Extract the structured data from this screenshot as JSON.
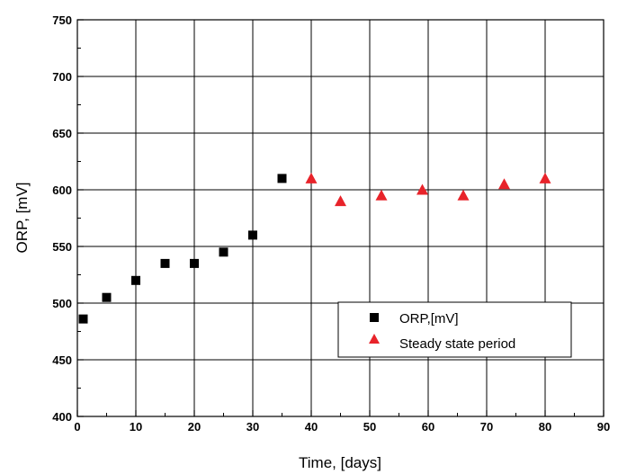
{
  "chart_data": {
    "type": "scatter",
    "title": "",
    "xlabel": "Time, [days]",
    "ylabel": "ORP, [mV]",
    "xlim": [
      0,
      90
    ],
    "ylim": [
      400,
      750
    ],
    "x_ticks": [
      0,
      10,
      20,
      30,
      40,
      50,
      60,
      70,
      80,
      90
    ],
    "y_ticks": [
      400,
      450,
      500,
      550,
      600,
      650,
      700,
      750
    ],
    "x_tick_labels": [
      "0",
      "10",
      "20",
      "30",
      "40",
      "50",
      "60",
      "70",
      "80",
      "90"
    ],
    "y_tick_labels": [
      "400",
      "450",
      "500",
      "550",
      "600",
      "650",
      "700",
      "750"
    ],
    "grid": true,
    "legend_position": "lower-right",
    "series": [
      {
        "name": "ORP,[mV]",
        "marker": "square",
        "color": "#000000",
        "x": [
          1,
          5,
          10,
          15,
          20,
          25,
          30,
          35
        ],
        "y": [
          486,
          505,
          520,
          535,
          535,
          545,
          560,
          610
        ]
      },
      {
        "name": "Steady state period",
        "marker": "triangle",
        "color": "#e8232a",
        "x": [
          40,
          45,
          52,
          59,
          66,
          73,
          80
        ],
        "y": [
          610,
          590,
          595,
          600,
          595,
          605,
          610
        ]
      }
    ]
  }
}
